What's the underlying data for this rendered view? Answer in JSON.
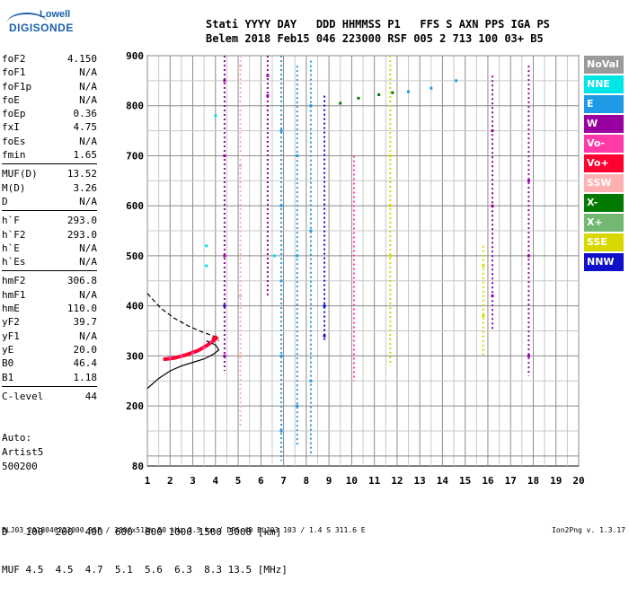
{
  "logo": {
    "top": "Lowell",
    "main": "DIGISONDE"
  },
  "header": {
    "row1": "Stati YYYY DAY   DDD HHMMSS P1   FFS S AXN PPS IGA PS",
    "row2": "Belem 2018 Feb15 046 223000 RSF 005 2 713 100 03+ B5"
  },
  "params": [
    {
      "label": "foF2",
      "value": "4.150"
    },
    {
      "label": "foF1",
      "value": "N/A"
    },
    {
      "label": "foF1p",
      "value": "N/A"
    },
    {
      "label": "foE",
      "value": "N/A"
    },
    {
      "label": "foEp",
      "value": "0.36"
    },
    {
      "label": "fxI",
      "value": "4.75"
    },
    {
      "label": "foEs",
      "value": "N/A"
    },
    {
      "label": "fmin",
      "value": "1.65"
    },
    {
      "sep": true
    },
    {
      "label": "MUF(D)",
      "value": "13.52"
    },
    {
      "label": "M(D)",
      "value": "3.26"
    },
    {
      "label": "D",
      "value": "N/A"
    },
    {
      "sep": true
    },
    {
      "label": "h`F",
      "value": "293.0"
    },
    {
      "label": "h`F2",
      "value": "293.0"
    },
    {
      "label": "h`E",
      "value": "N/A"
    },
    {
      "label": "h`Es",
      "value": "N/A"
    },
    {
      "sep": true
    },
    {
      "label": "hmF2",
      "value": "306.8"
    },
    {
      "label": "hmF1",
      "value": "N/A"
    },
    {
      "label": "hmE",
      "value": "110.0"
    },
    {
      "label": "yF2",
      "value": "39.7"
    },
    {
      "label": "yF1",
      "value": "N/A"
    },
    {
      "label": "yE",
      "value": "20.0"
    },
    {
      "label": "B0",
      "value": "46.4"
    },
    {
      "label": "B1",
      "value": "1.18"
    },
    {
      "sep": true
    },
    {
      "label": "C-level",
      "value": "44"
    }
  ],
  "auto": {
    "line1": "Auto:",
    "line2": "Artist5",
    "line3": "500200"
  },
  "dmuf": {
    "d_label": "D",
    "d_values": "100  200  400  600  800 1000 1500 3000 [km]",
    "muf_label": "MUF",
    "muf_values": "4.5  4.5  4.7  5.1  5.6  6.3  8.3 13.5 [MHz]"
  },
  "footer": {
    "left": "BLJ03_2018046223000.RSF / 380fx512h 50 kHz 2.5 km / DPS-4D BLJ03 103 / 1.4 S 311.6 E",
    "right": "Ion2Png v. 1.3.17"
  },
  "legend": [
    {
      "label": "NoVal",
      "color": "#9a9a9a"
    },
    {
      "label": "NNE",
      "color": "#00e6e6"
    },
    {
      "label": "E",
      "color": "#1e9ae6"
    },
    {
      "label": "W",
      "color": "#9a00a0"
    },
    {
      "label": "Vo-",
      "color": "#ff3aa8"
    },
    {
      "label": "Vo+",
      "color": "#ff0030"
    },
    {
      "label": "SSW",
      "color": "#ffb0b0"
    },
    {
      "label": "X-",
      "color": "#007a00"
    },
    {
      "label": "X+",
      "color": "#72b872"
    },
    {
      "label": "SSE",
      "color": "#d8d800"
    },
    {
      "label": "NNW",
      "color": "#1010c8"
    }
  ],
  "chart_data": {
    "type": "scatter",
    "xlabel": "",
    "ylabel": "",
    "xlim": [
      1,
      20
    ],
    "ylim": [
      80,
      900
    ],
    "x_ticks": [
      1,
      2,
      3,
      4,
      5,
      6,
      7,
      8,
      9,
      10,
      11,
      12,
      13,
      14,
      15,
      16,
      17,
      18,
      19,
      20
    ],
    "y_ticks": [
      80,
      200,
      300,
      400,
      500,
      600,
      700,
      800,
      900
    ],
    "grid": true,
    "series": [
      {
        "name": "E",
        "color": "#1e9ae6",
        "points": [
          [
            6.9,
            150
          ],
          [
            6.9,
            300
          ],
          [
            6.9,
            450
          ],
          [
            6.9,
            600
          ],
          [
            6.9,
            750
          ],
          [
            7.6,
            200
          ],
          [
            7.6,
            500
          ],
          [
            7.6,
            700
          ],
          [
            8.2,
            250
          ],
          [
            8.2,
            550
          ],
          [
            8.2,
            800
          ],
          [
            12.5,
            828
          ],
          [
            13.5,
            835
          ],
          [
            14.6,
            850
          ]
        ]
      },
      {
        "name": "W",
        "color": "#9a00a0",
        "points": [
          [
            4.4,
            300
          ],
          [
            4.4,
            500
          ],
          [
            4.4,
            700
          ],
          [
            4.4,
            850
          ],
          [
            6.3,
            820
          ],
          [
            6.3,
            860
          ],
          [
            16.2,
            420
          ],
          [
            16.2,
            600
          ],
          [
            16.2,
            750
          ],
          [
            17.8,
            300
          ],
          [
            17.8,
            500
          ],
          [
            17.8,
            650
          ]
        ]
      },
      {
        "name": "Vo-",
        "color": "#ff3aa8",
        "points": [
          [
            2.0,
            296
          ],
          [
            2.5,
            300
          ],
          [
            3.0,
            306
          ],
          [
            3.5,
            316
          ],
          [
            3.8,
            328
          ]
        ]
      },
      {
        "name": "Vo+",
        "color": "#ff0030",
        "points": [
          [
            3.9,
            335
          ],
          [
            4.0,
            338
          ]
        ]
      },
      {
        "name": "SSW",
        "color": "#ffb0b0",
        "points": [
          [
            5.1,
            300
          ],
          [
            5.1,
            420
          ],
          [
            5.1,
            680
          ],
          [
            5.1,
            880
          ]
        ]
      },
      {
        "name": "X-",
        "color": "#007a00",
        "points": [
          [
            9.5,
            805
          ],
          [
            10.3,
            815
          ],
          [
            11.2,
            822
          ],
          [
            11.8,
            826
          ]
        ]
      },
      {
        "name": "SSE",
        "color": "#d8d800",
        "points": [
          [
            11.7,
            700
          ],
          [
            11.7,
            600
          ],
          [
            11.7,
            500
          ],
          [
            15.8,
            480
          ],
          [
            15.8,
            380
          ]
        ]
      },
      {
        "name": "NNW",
        "color": "#1010c8",
        "points": [
          [
            4.4,
            400
          ],
          [
            8.8,
            400
          ],
          [
            8.8,
            340
          ]
        ]
      },
      {
        "name": "NNE",
        "color": "#00e6e6",
        "points": [
          [
            3.6,
            520
          ],
          [
            3.6,
            480
          ],
          [
            4.0,
            780
          ],
          [
            6.6,
            500
          ]
        ]
      }
    ]
  }
}
